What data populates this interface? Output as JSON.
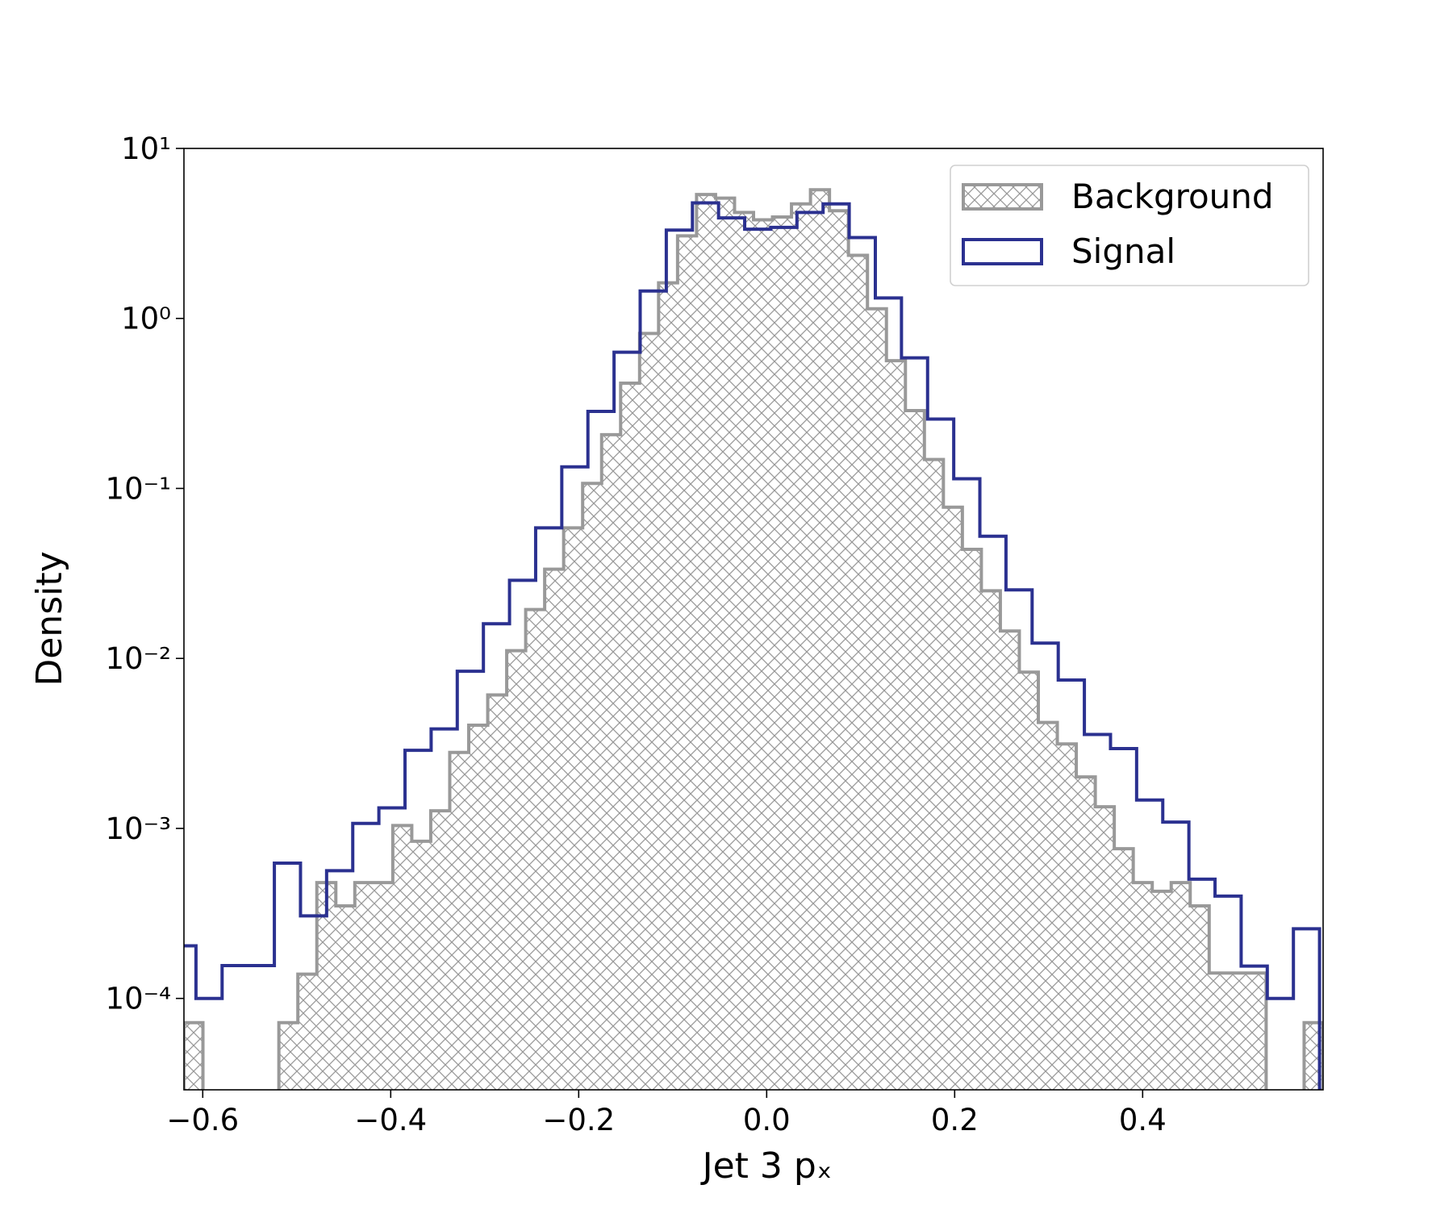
{
  "chart_data": {
    "type": "histogram",
    "xlabel": "Jet 3 pₓ",
    "ylabel": "Density",
    "xlim": [
      -0.62,
      0.592
    ],
    "ylim": [
      2.9e-05,
      10
    ],
    "log_y": true,
    "legend": "upper right",
    "xticks": [
      {
        "value": -0.6,
        "label": "−0.6"
      },
      {
        "value": -0.4,
        "label": "−0.4"
      },
      {
        "value": -0.2,
        "label": "−0.2"
      },
      {
        "value": 0,
        "label": "0.0"
      },
      0.2,
      0.4
    ],
    "yticks": [
      {
        "value": 0.0001,
        "label": "10⁻⁴"
      },
      {
        "value": 0.001,
        "label": "10⁻³"
      },
      {
        "value": 0.01,
        "label": "10⁻²"
      },
      {
        "value": 0.1,
        "label": "10⁻¹"
      },
      {
        "value": 1,
        "label": "10⁰"
      },
      {
        "value": 10,
        "label": "10¹"
      }
    ],
    "series": [
      {
        "name": "Background",
        "color": "#999999",
        "hatch": true,
        "bins": [
          -0.62,
          -0.5998,
          -0.5796,
          -0.5594,
          -0.5392,
          -0.519,
          -0.4988,
          -0.4786,
          -0.4584,
          -0.4382,
          -0.418,
          -0.3978,
          -0.3776,
          -0.3574,
          -0.3372,
          -0.317,
          -0.2968,
          -0.2766,
          -0.2564,
          -0.2362,
          -0.216,
          -0.1958,
          -0.1756,
          -0.1554,
          -0.1352,
          -0.115,
          -0.0948,
          -0.0746,
          -0.0544,
          -0.0342,
          -0.014,
          0.0062,
          0.0264,
          0.0466,
          0.0668,
          0.087,
          0.1072,
          0.1274,
          0.1476,
          0.1678,
          0.188,
          0.2082,
          0.2284,
          0.2486,
          0.2688,
          0.289,
          0.3092,
          0.3294,
          0.3496,
          0.3698,
          0.39,
          0.4102,
          0.4304,
          0.4506,
          0.4708,
          0.491,
          0.5112,
          0.5314,
          0.5516,
          0.5718,
          0.592
        ],
        "values": [
          7.2e-05,
          0,
          0,
          0,
          0,
          7.2e-05,
          0.000139,
          0.00048,
          0.00035,
          0.00048,
          0.00048,
          0.00104,
          0.00084,
          0.00127,
          0.0028,
          0.00405,
          0.0061,
          0.0111,
          0.0194,
          0.0335,
          0.0586,
          0.107,
          0.207,
          0.416,
          0.816,
          1.62,
          3.06,
          5.36,
          5.1,
          4.2,
          3.8,
          3.95,
          4.72,
          5.71,
          4.3,
          2.35,
          1.14,
          0.564,
          0.287,
          0.148,
          0.0776,
          0.0438,
          0.025,
          0.0145,
          0.0083,
          0.0042,
          0.00314,
          0.00201,
          0.00134,
          0.00076,
          0.00048,
          0.000427,
          0.00048,
          0.00035,
          0.000141,
          0.000141,
          0.000141,
          0,
          0,
          7.2e-05
        ]
      },
      {
        "name": "Signal",
        "color": "#2b3190",
        "hatch": false,
        "bins": [
          -0.635,
          -0.6072,
          -0.5794,
          -0.5516,
          -0.5238,
          -0.496,
          -0.4682,
          -0.4404,
          -0.4126,
          -0.3848,
          -0.357,
          -0.3292,
          -0.3014,
          -0.2736,
          -0.2458,
          -0.218,
          -0.1902,
          -0.1624,
          -0.1346,
          -0.1068,
          -0.079,
          -0.0512,
          -0.0234,
          0.0044,
          0.0322,
          0.06,
          0.0878,
          0.1156,
          0.1434,
          0.1712,
          0.199,
          0.2268,
          0.2546,
          0.2824,
          0.3102,
          0.338,
          0.3658,
          0.3936,
          0.4214,
          0.4492,
          0.477,
          0.5048,
          0.5326,
          0.5604,
          0.5882
        ],
        "values": [
          0.000204,
          0.0001,
          0.000156,
          0.000156,
          0.000625,
          0.000306,
          0.000564,
          0.00107,
          0.00132,
          0.00288,
          0.00385,
          0.0084,
          0.016,
          0.0288,
          0.0586,
          0.134,
          0.284,
          0.633,
          1.45,
          3.31,
          4.78,
          3.9,
          3.35,
          3.43,
          4.2,
          4.72,
          2.99,
          1.32,
          0.586,
          0.256,
          0.114,
          0.0523,
          0.0253,
          0.0123,
          0.00746,
          0.00357,
          0.00295,
          0.00147,
          0.00109,
          0.000503,
          0.0004,
          0.000155,
          0.0001,
          0.000257
        ]
      }
    ]
  }
}
